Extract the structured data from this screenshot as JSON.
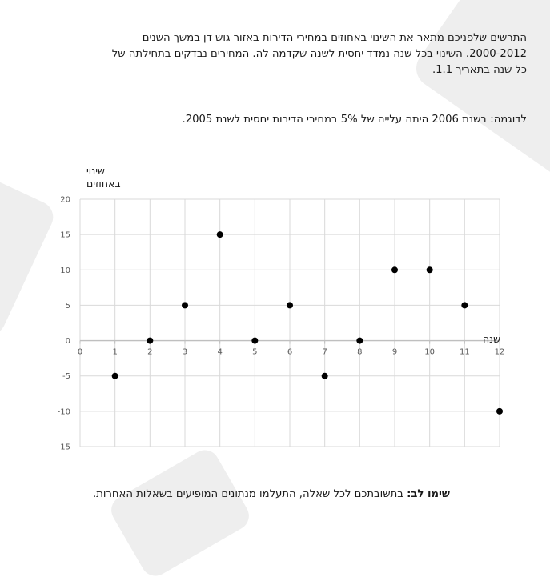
{
  "intro": {
    "line1": "התרשים שלפניכם מתאר את השינוי באחוזים במחירי הדירות באזור גוש דן במשך השנים",
    "line2_start": "2000-2012. השינוי בכל שנה נמדד ",
    "line2_underlined": "יחסית",
    "line2_end": " לשנה שקדמה לה. המחירים נבדקים בתחילתה של",
    "line3": "כל שנה בתאריך 1.1."
  },
  "example": "לדוגמה: בשנת 2006 היתה עלייה של 5% במחירי הדירות יחסית לשנת 2005.",
  "notice": {
    "bold": "שימו לב:",
    "text": " בתשובתכם לכל שאלה, התעלמו מנתונים המופיעים בשאלות האחרות."
  },
  "colors": {
    "point": "#000000",
    "grid": "#d9d9d9",
    "axis": "#bfbfbf",
    "tick_text": "#595959"
  },
  "chart_data": {
    "type": "scatter",
    "title": "",
    "ylabel_line1": "שינוי",
    "ylabel_line2": "באחוזים",
    "xlabel": "שנה",
    "xlim": [
      0,
      12
    ],
    "ylim": [
      -15,
      20
    ],
    "xticks": [
      0,
      1,
      2,
      3,
      4,
      5,
      6,
      7,
      8,
      9,
      10,
      11,
      12
    ],
    "yticks": [
      20,
      15,
      10,
      5,
      0,
      -5,
      -10,
      -15
    ],
    "grid": true,
    "x": [
      1,
      2,
      3,
      4,
      5,
      6,
      7,
      8,
      9,
      10,
      11,
      12
    ],
    "y": [
      -5,
      0,
      5,
      15,
      0,
      5,
      -5,
      0,
      10,
      10,
      5,
      -10
    ]
  }
}
